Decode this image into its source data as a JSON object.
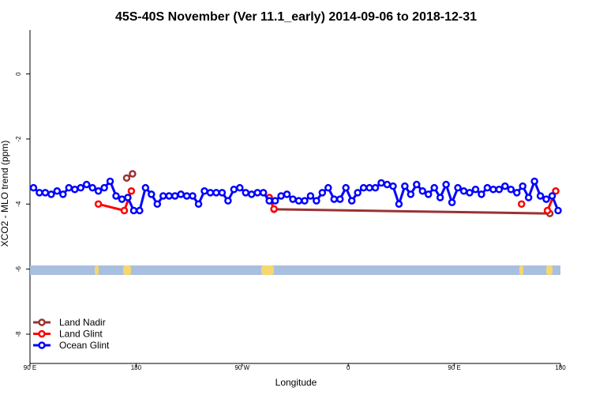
{
  "chart_data": {
    "type": "line",
    "title": "45S-40S November (Ver 11.1_early)   2014-09-06 to 2018-12-31",
    "x_label": "Longitude",
    "y_label": "XCO2 - MLO trend (ppm)",
    "xlim": [
      90,
      540
    ],
    "ylim": [
      -8.9,
      1.35
    ],
    "xticks": [
      {
        "value": 90,
        "label": "90 E"
      },
      180,
      {
        "value": 270,
        "label": "90 W"
      },
      {
        "value": 360,
        "label": "0"
      },
      {
        "value": 450,
        "label": "90 E"
      },
      {
        "value": 540,
        "label": "180"
      }
    ],
    "yticks": [
      0,
      -2,
      -4,
      -6,
      -8
    ],
    "legend": "bottom-left",
    "series": [
      {
        "name": "Land Nadir",
        "color": "#993333",
        "x": [
          172,
          177,
          289,
          297,
          531,
          536
        ],
        "values": [
          -3.2,
          -3.07,
          null,
          -4.16,
          -4.29,
          null
        ]
      },
      {
        "name": "Land Glint",
        "color": "#ff0000",
        "x": [
          148,
          170,
          176,
          230,
          293,
          297,
          400,
          507,
          520,
          529,
          536
        ],
        "values": [
          -4.0,
          -4.2,
          -3.6,
          null,
          -3.8,
          -4.15,
          null,
          -4.0,
          null,
          -4.2,
          -3.6
        ]
      },
      {
        "name": "Ocean Glint",
        "color": "#0000ff",
        "x": [
          93,
          98,
          103,
          108,
          113,
          118,
          123,
          128,
          133,
          138,
          143,
          148,
          153,
          158,
          163,
          168,
          173,
          178,
          183,
          188,
          193,
          198,
          203,
          208,
          213,
          218,
          223,
          228,
          233,
          238,
          243,
          248,
          253,
          258,
          263,
          268,
          273,
          278,
          283,
          288,
          293,
          298,
          303,
          308,
          313,
          318,
          323,
          328,
          333,
          338,
          343,
          348,
          353,
          358,
          363,
          368,
          373,
          378,
          383,
          388,
          393,
          398,
          403,
          408,
          413,
          418,
          423,
          428,
          433,
          438,
          443,
          448,
          453,
          458,
          463,
          468,
          473,
          478,
          483,
          488,
          493,
          498,
          503,
          508,
          513,
          518,
          523,
          528,
          533,
          538
        ],
        "values": [
          -3.5,
          -3.65,
          -3.65,
          -3.7,
          -3.6,
          -3.7,
          -3.5,
          -3.55,
          -3.5,
          -3.4,
          -3.5,
          -3.6,
          -3.5,
          -3.3,
          -3.75,
          -3.85,
          -3.8,
          -4.2,
          -4.2,
          -3.5,
          -3.7,
          -4.0,
          -3.75,
          -3.75,
          -3.75,
          -3.7,
          -3.75,
          -3.75,
          -4.0,
          -3.6,
          -3.65,
          -3.65,
          -3.65,
          -3.9,
          -3.55,
          -3.5,
          -3.65,
          -3.7,
          -3.65,
          -3.65,
          -3.9,
          -3.9,
          -3.75,
          -3.7,
          -3.85,
          -3.9,
          -3.9,
          -3.75,
          -3.9,
          -3.65,
          -3.5,
          -3.85,
          -3.85,
          -3.5,
          -3.9,
          -3.65,
          -3.5,
          -3.5,
          -3.5,
          -3.35,
          -3.4,
          -3.45,
          -4.0,
          -3.45,
          -3.7,
          -3.4,
          -3.6,
          -3.7,
          -3.5,
          -3.8,
          -3.4,
          -3.95,
          -3.5,
          -3.6,
          -3.65,
          -3.55,
          -3.7,
          -3.5,
          -3.55,
          -3.55,
          -3.45,
          -3.55,
          -3.65,
          -3.45,
          -3.8,
          -3.3,
          -3.75,
          -3.85,
          -3.75,
          -4.2
        ]
      }
    ]
  }
}
